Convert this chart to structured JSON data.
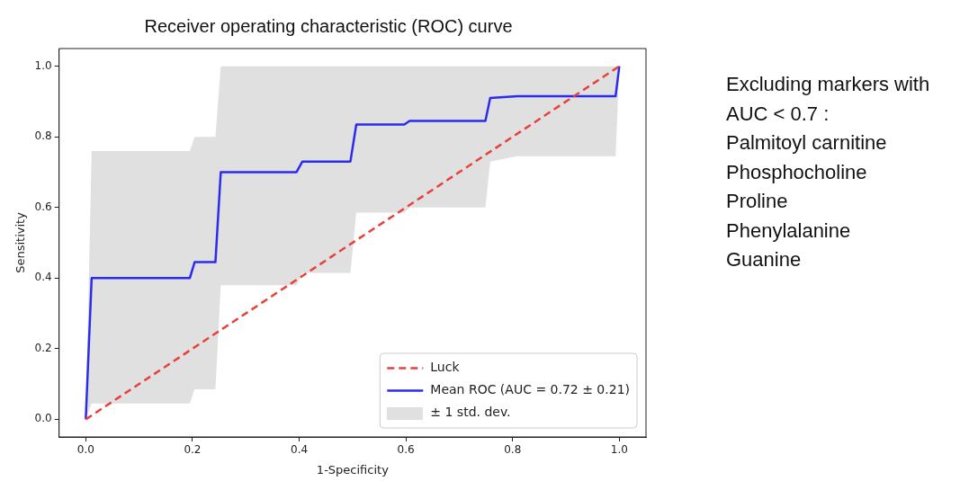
{
  "chart_data": {
    "type": "line",
    "title": "Receiver operating characteristic (ROC) curve",
    "xlabel": "1-Specificity",
    "ylabel": "Sensitivity",
    "xlim": [
      -0.05,
      1.05
    ],
    "ylim": [
      -0.05,
      1.05
    ],
    "xticks": [
      {
        "value": 0,
        "label": "0.0"
      },
      {
        "value": 0.2,
        "label": "0.2"
      },
      {
        "value": 0.4,
        "label": "0.4"
      },
      {
        "value": 0.6,
        "label": "0.6"
      },
      {
        "value": 0.8,
        "label": "0.8"
      },
      {
        "value": 1,
        "label": "1.0"
      }
    ],
    "yticks": [
      {
        "value": 0,
        "label": "0.0"
      },
      {
        "value": 0.2,
        "label": "0.2"
      },
      {
        "value": 0.4,
        "label": "0.4"
      },
      {
        "value": 0.6,
        "label": "0.6"
      },
      {
        "value": 0.8,
        "label": "0.8"
      },
      {
        "value": 1,
        "label": "1.0"
      }
    ],
    "grid": false,
    "legend": "bottom right",
    "series": [
      {
        "name": "Luck",
        "type": "line",
        "color": "#e8403a",
        "line_style": "dashed",
        "x": [
          0,
          1
        ],
        "values": [
          0,
          1
        ]
      },
      {
        "name": "Mean ROC (AUC = 0.72 ± 0.21)",
        "type": "line",
        "color": "#2b2bf0",
        "line_style": "solid",
        "x": [
          0,
          0.011,
          0.195,
          0.204,
          0.243,
          0.253,
          0.395,
          0.406,
          0.496,
          0.507,
          0.597,
          0.607,
          0.749,
          0.758,
          0.809,
          0.993,
          1
        ],
        "values": [
          0,
          0.4,
          0.4,
          0.445,
          0.445,
          0.7,
          0.7,
          0.73,
          0.73,
          0.835,
          0.835,
          0.845,
          0.845,
          0.91,
          0.915,
          0.915,
          1
        ],
        "lower": [
          0,
          0.045,
          0.045,
          0.085,
          0.085,
          0.38,
          0.38,
          0.415,
          0.415,
          0.585,
          0.585,
          0.6,
          0.6,
          0.73,
          0.745,
          0.745,
          1
        ],
        "upper": [
          0,
          0.76,
          0.76,
          0.8,
          0.8,
          1,
          1,
          1,
          1,
          1,
          1,
          1,
          1,
          1,
          1,
          1,
          1
        ]
      }
    ],
    "annotations": [
      "± 1 std. dev.",
      "Excluding markers with",
      "AUC < 0.7 :",
      "Palmitoyl carnitine",
      "Phosphocholine",
      "Proline",
      "Phenylalanine",
      "Guanine"
    ]
  }
}
